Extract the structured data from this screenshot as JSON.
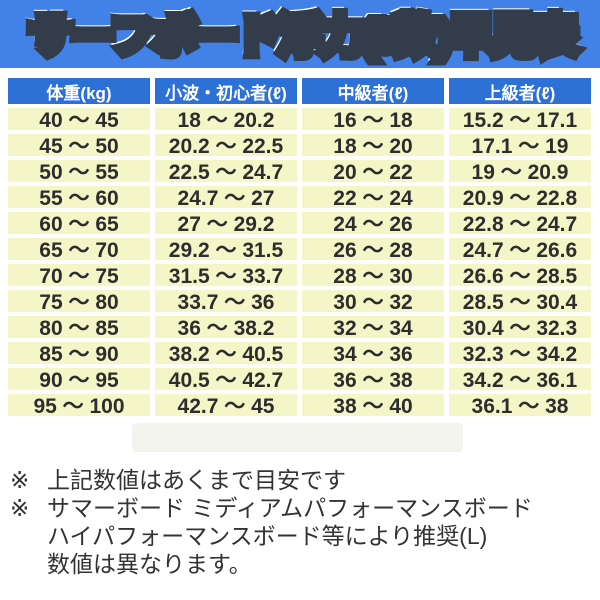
{
  "colors": {
    "banner_blue": "#4181e8",
    "header_blue": "#2d70d6",
    "row_yellow": "#f4f6c8",
    "title_orange": "#f3ad3a",
    "title_outline_white": "#ffffff",
    "title_outline_dark": "#333c4a",
    "cell_text": "#2d2d2d",
    "note_text": "#333333"
  },
  "title": "サーフボード浮力(ℓ数)早見表",
  "table": {
    "headers": [
      "体重(kg)",
      "小波・初心者(ℓ)",
      "中級者(ℓ)",
      "上級者(ℓ)"
    ],
    "rows": [
      [
        "40 〜 45",
        "18 〜 20.2",
        "16 〜 18",
        "15.2 〜 17.1"
      ],
      [
        "45 〜 50",
        "20.2 〜 22.5",
        "18 〜 20",
        "17.1 〜 19"
      ],
      [
        "50 〜 55",
        "22.5 〜 24.7",
        "20 〜 22",
        "19 〜 20.9"
      ],
      [
        "55 〜 60",
        "24.7 〜 27",
        "22 〜 24",
        "20.9 〜 22.8"
      ],
      [
        "60 〜 65",
        "27 〜 29.2",
        "24 〜 26",
        "22.8 〜 24.7"
      ],
      [
        "65 〜 70",
        "29.2 〜 31.5",
        "26 〜 28",
        "24.7 〜 26.6"
      ],
      [
        "70 〜 75",
        "31.5 〜 33.7",
        "28 〜 30",
        "26.6 〜 28.5"
      ],
      [
        "75 〜 80",
        "33.7 〜 36",
        "30 〜 32",
        "28.5 〜 30.4"
      ],
      [
        "80 〜 85",
        "36 〜 38.2",
        "32 〜 34",
        "30.4 〜 32.3"
      ],
      [
        "85 〜 90",
        "38.2 〜 40.5",
        "34 〜 36",
        "32.3 〜 34.2"
      ],
      [
        "90 〜 95",
        "40.5 〜 42.7",
        "36 〜 38",
        "34.2 〜 36.1"
      ],
      [
        "95 〜 100",
        "42.7 〜 45",
        "38 〜 40",
        "36.1 〜 38"
      ]
    ]
  },
  "notes": [
    {
      "marker": "※",
      "lines": [
        "上記数値はあくまで目安です"
      ]
    },
    {
      "marker": "※",
      "lines": [
        "サマーボード ミディアムパフォーマンスボード",
        "ハイパフォーマンスボード等により推奨(L)",
        "数値は異なります。"
      ]
    }
  ],
  "chart_data": {
    "type": "table",
    "title": "サーフボード浮力(ℓ数)早見表",
    "columns": [
      "体重(kg)",
      "小波・初心者(ℓ)",
      "中級者(ℓ)",
      "上級者(ℓ)"
    ],
    "rows": [
      [
        "40〜45",
        "18〜20.2",
        "16〜18",
        "15.2〜17.1"
      ],
      [
        "45〜50",
        "20.2〜22.5",
        "18〜20",
        "17.1〜19"
      ],
      [
        "50〜55",
        "22.5〜24.7",
        "20〜22",
        "19〜20.9"
      ],
      [
        "55〜60",
        "24.7〜27",
        "22〜24",
        "20.9〜22.8"
      ],
      [
        "60〜65",
        "27〜29.2",
        "24〜26",
        "22.8〜24.7"
      ],
      [
        "65〜70",
        "29.2〜31.5",
        "26〜28",
        "24.7〜26.6"
      ],
      [
        "70〜75",
        "31.5〜33.7",
        "28〜30",
        "26.6〜28.5"
      ],
      [
        "75〜80",
        "33.7〜36",
        "30〜32",
        "28.5〜30.4"
      ],
      [
        "80〜85",
        "36〜38.2",
        "32〜34",
        "30.4〜32.3"
      ],
      [
        "85〜90",
        "38.2〜40.5",
        "34〜36",
        "32.3〜34.2"
      ],
      [
        "90〜95",
        "40.5〜42.7",
        "36〜38",
        "34.2〜36.1"
      ],
      [
        "95〜100",
        "42.7〜45",
        "38〜40",
        "36.1〜38"
      ]
    ]
  }
}
